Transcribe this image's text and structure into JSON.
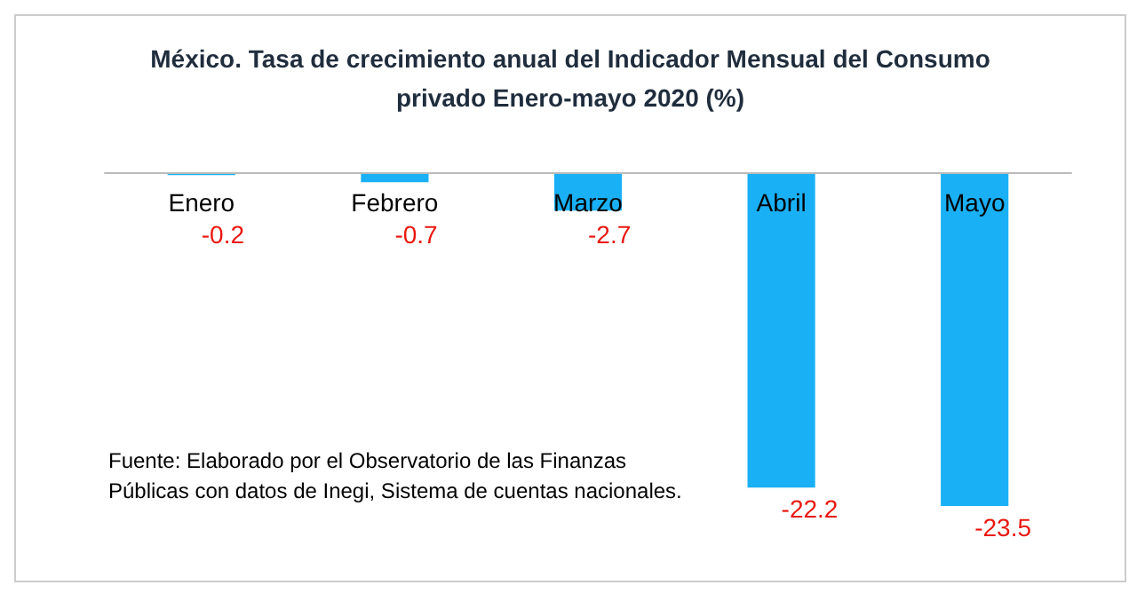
{
  "chart_data": {
    "type": "bar",
    "title": "México. Tasa de crecimiento anual del Indicador Mensual del Consumo\nprivado Enero-mayo 2020 (%)",
    "categories": [
      "Enero",
      "Febrero",
      "Marzo",
      "Abril",
      "Mayo"
    ],
    "values": [
      -0.2,
      -0.7,
      -2.7,
      -22.2,
      -23.5
    ],
    "color": "#1ab0f5",
    "data_labels": true,
    "grid": false,
    "annotations": [
      "Fuente: Elaborado por el Observatorio de las Finanzas Públicas con datos de Inegi, Sistema de cuentas nacionales."
    ]
  }
}
